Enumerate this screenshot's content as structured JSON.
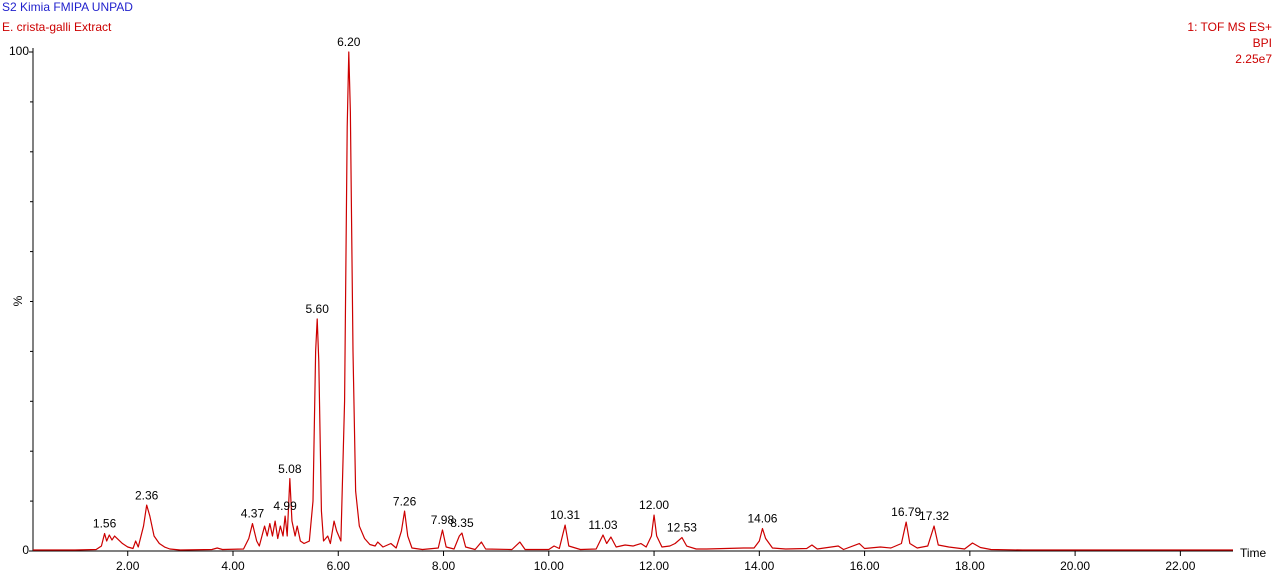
{
  "chart_data": {
    "type": "line",
    "title": "S2 Kimia FMIPA UNPAD",
    "subtitle": "E. crista-galli Extract",
    "function_label": "1: TOF MS ES+",
    "trace_label": "BPI",
    "intensity_label": "2.25e7",
    "ylabel": "%",
    "xlabel": "Time",
    "color": "#cc0000",
    "title_color": "#1f1fcc",
    "xlim": [
      0.2,
      23.0
    ],
    "ylim": [
      0,
      100
    ],
    "yticks": [
      0,
      100
    ],
    "yticks_minor": [
      10,
      20,
      30,
      40,
      50,
      60,
      70,
      80,
      90
    ],
    "xticks": [
      {
        "value": 2,
        "label": "2.00"
      },
      {
        "value": 4,
        "label": "4.00"
      },
      {
        "value": 6,
        "label": "6.00"
      },
      {
        "value": 8,
        "label": "8.00"
      },
      {
        "value": 10,
        "label": "10.00"
      },
      {
        "value": 12,
        "label": "12.00"
      },
      {
        "value": 14,
        "label": "14.00"
      },
      {
        "value": 16,
        "label": "16.00"
      },
      {
        "value": 18,
        "label": "18.00"
      },
      {
        "value": 20,
        "label": "20.00"
      },
      {
        "value": 22,
        "label": "22.00"
      }
    ],
    "x": [
      0.2,
      1.0,
      1.4,
      1.5,
      1.56,
      1.6,
      1.65,
      1.7,
      1.75,
      1.8,
      1.9,
      2.0,
      2.1,
      2.15,
      2.2,
      2.3,
      2.36,
      2.42,
      2.5,
      2.6,
      2.7,
      2.8,
      3.0,
      3.6,
      3.7,
      3.8,
      4.2,
      4.3,
      4.37,
      4.45,
      4.5,
      4.55,
      4.6,
      4.65,
      4.7,
      4.75,
      4.8,
      4.85,
      4.9,
      4.95,
      4.99,
      5.03,
      5.08,
      5.12,
      5.18,
      5.22,
      5.28,
      5.35,
      5.45,
      5.52,
      5.57,
      5.6,
      5.63,
      5.68,
      5.72,
      5.8,
      5.85,
      5.92,
      5.97,
      6.05,
      6.12,
      6.17,
      6.2,
      6.23,
      6.28,
      6.33,
      6.4,
      6.5,
      6.6,
      6.7,
      6.75,
      6.85,
      7.0,
      7.1,
      7.2,
      7.26,
      7.32,
      7.4,
      7.6,
      7.9,
      7.98,
      8.05,
      8.2,
      8.3,
      8.35,
      8.42,
      8.6,
      8.72,
      8.8,
      9.3,
      9.45,
      9.55,
      10.0,
      10.1,
      10.2,
      10.31,
      10.38,
      10.6,
      10.9,
      11.03,
      11.1,
      11.18,
      11.28,
      11.45,
      11.6,
      11.75,
      11.85,
      11.95,
      12.0,
      12.05,
      12.15,
      12.3,
      12.4,
      12.53,
      12.62,
      12.8,
      13.0,
      13.7,
      13.9,
      14.0,
      14.06,
      14.12,
      14.25,
      14.5,
      14.9,
      15.0,
      15.1,
      15.5,
      15.6,
      15.9,
      16.0,
      16.3,
      16.5,
      16.7,
      16.79,
      16.86,
      17.0,
      17.2,
      17.32,
      17.4,
      17.6,
      17.9,
      18.05,
      18.2,
      18.4,
      19.0,
      23.0
    ],
    "values": [
      0.2,
      0.2,
      0.3,
      1.0,
      3.5,
      2.0,
      3.2,
      2.2,
      3.0,
      2.5,
      1.5,
      0.8,
      0.5,
      2.0,
      0.8,
      5,
      9.2,
      7,
      3,
      1.5,
      0.8,
      0.4,
      0.2,
      0.3,
      0.6,
      0.3,
      0.4,
      2.5,
      5.5,
      2,
      1,
      3,
      5,
      3,
      5.5,
      3,
      6,
      2.5,
      5,
      3,
      7,
      3,
      14.5,
      6,
      3,
      5,
      2,
      1.5,
      2,
      10,
      40,
      46.5,
      38,
      8,
      2,
      3,
      1.5,
      6,
      4,
      2,
      30,
      85,
      100,
      88,
      40,
      12,
      5,
      2.5,
      1.3,
      1,
      1.8,
      0.8,
      1.5,
      0.6,
      4,
      8,
      3,
      0.6,
      0.3,
      0.6,
      4.2,
      0.8,
      0.4,
      3.0,
      3.6,
      0.8,
      0.3,
      1.8,
      0.4,
      0.3,
      1.8,
      0.3,
      0.3,
      1.0,
      0.5,
      5.2,
      1,
      0.3,
      0.4,
      3.2,
      1.5,
      2.8,
      0.8,
      1.2,
      1.0,
      1.5,
      0.8,
      3,
      7.2,
      3,
      0.8,
      1,
      1.5,
      2.7,
      1,
      0.4,
      0.4,
      0.6,
      0.6,
      2,
      4.5,
      2.5,
      0.6,
      0.4,
      0.5,
      1.2,
      0.4,
      1.0,
      0.3,
      1.5,
      0.5,
      0.8,
      0.6,
      1.5,
      5.8,
      1.5,
      0.6,
      1,
      5.0,
      1.2,
      0.8,
      0.4,
      1.6,
      0.7,
      0.3,
      0.2,
      0.2
    ],
    "peaks": [
      {
        "x": 1.56,
        "y": 3.5,
        "label": "1.56"
      },
      {
        "x": 2.36,
        "y": 9.2,
        "label": "2.36"
      },
      {
        "x": 4.37,
        "y": 5.5,
        "label": "4.37"
      },
      {
        "x": 4.99,
        "y": 7,
        "label": "4.99"
      },
      {
        "x": 5.08,
        "y": 14.5,
        "label": "5.08"
      },
      {
        "x": 5.6,
        "y": 46.5,
        "label": "5.60"
      },
      {
        "x": 6.2,
        "y": 100,
        "label": "6.20"
      },
      {
        "x": 7.26,
        "y": 8,
        "label": "7.26"
      },
      {
        "x": 7.98,
        "y": 4.2,
        "label": "7.98"
      },
      {
        "x": 8.35,
        "y": 3.6,
        "label": "8.35"
      },
      {
        "x": 10.31,
        "y": 5.2,
        "label": "10.31"
      },
      {
        "x": 11.03,
        "y": 3.2,
        "label": "11.03"
      },
      {
        "x": 12.0,
        "y": 7.2,
        "label": "12.00"
      },
      {
        "x": 12.53,
        "y": 2.7,
        "label": "12.53"
      },
      {
        "x": 14.06,
        "y": 4.5,
        "label": "14.06"
      },
      {
        "x": 16.79,
        "y": 5.8,
        "label": "16.79"
      },
      {
        "x": 17.32,
        "y": 5.0,
        "label": "17.32"
      }
    ]
  }
}
